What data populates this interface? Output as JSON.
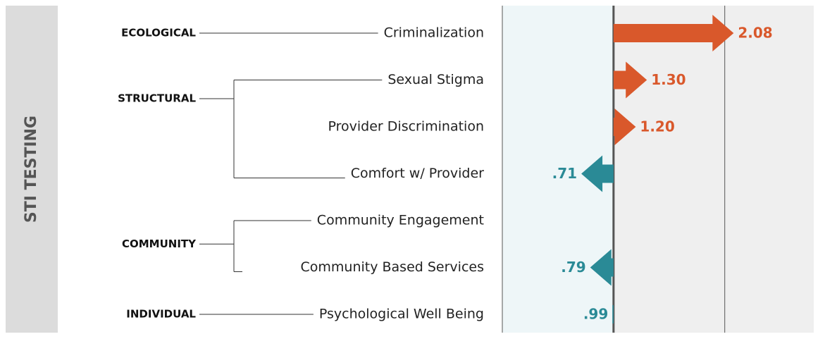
{
  "chart_data": {
    "type": "arrow",
    "title": "STI TESTING",
    "xlim": [
      0,
      2.8
    ],
    "xticks": [
      0,
      1,
      2
    ],
    "reference": 1,
    "increase_color": "#d9582b",
    "decrease_color": "#2a8a96",
    "groups": [
      {
        "name": "ECOLOGICAL",
        "categories": [
          "Criminalization"
        ],
        "values": [
          2.08
        ],
        "value_labels": [
          "2.08"
        ]
      },
      {
        "name": "STRUCTURAL",
        "categories": [
          "Sexual Stigma",
          "Provider Discrimination",
          "Comfort w/ Provider"
        ],
        "values": [
          1.3,
          1.2,
          0.71
        ],
        "value_labels": [
          "1.30",
          "1.20",
          ".71"
        ]
      },
      {
        "name": "COMMUNITY",
        "categories": [
          "Community Engagement",
          "Community Based Services"
        ],
        "values": [
          null,
          0.79
        ],
        "value_labels": [
          null,
          ".79"
        ]
      },
      {
        "name": "INDIVIDUAL",
        "categories": [
          "Psychological Well Being"
        ],
        "values": [
          0.99
        ],
        "value_labels": [
          ".99"
        ]
      }
    ]
  }
}
